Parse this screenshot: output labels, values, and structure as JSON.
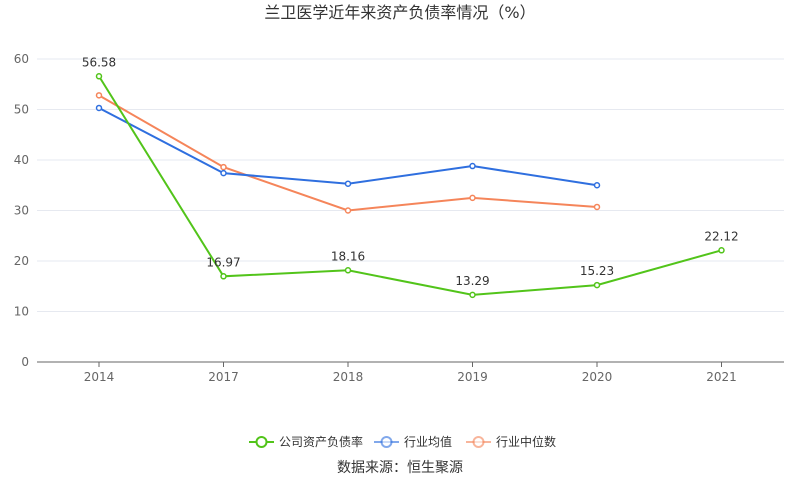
{
  "chart_data": {
    "type": "line",
    "title": "兰卫医学近年来资产负债率情况（%）",
    "categories": [
      "2014",
      "2017",
      "2018",
      "2019",
      "2020",
      "2021"
    ],
    "ylim": [
      0,
      60
    ],
    "yticks": [
      0,
      10,
      20,
      30,
      40,
      50,
      60
    ],
    "grid": true,
    "legend_position": "bottom",
    "series": [
      {
        "name": "公司资产负债率",
        "color": "#52c41a",
        "values": [
          56.58,
          16.97,
          18.16,
          13.29,
          15.23,
          22.12
        ],
        "labels": [
          "56.58",
          "16.97",
          "18.16",
          "13.29",
          "15.23",
          "22.12"
        ]
      },
      {
        "name": "行业均值",
        "color": "#2f6fdf",
        "values": [
          50.3,
          37.4,
          35.3,
          38.8,
          35.0,
          null
        ]
      },
      {
        "name": "行业中位数",
        "color": "#f5855a",
        "values": [
          52.8,
          38.6,
          30.0,
          32.5,
          30.7,
          null
        ]
      }
    ],
    "source": "数据来源：恒生聚源"
  }
}
